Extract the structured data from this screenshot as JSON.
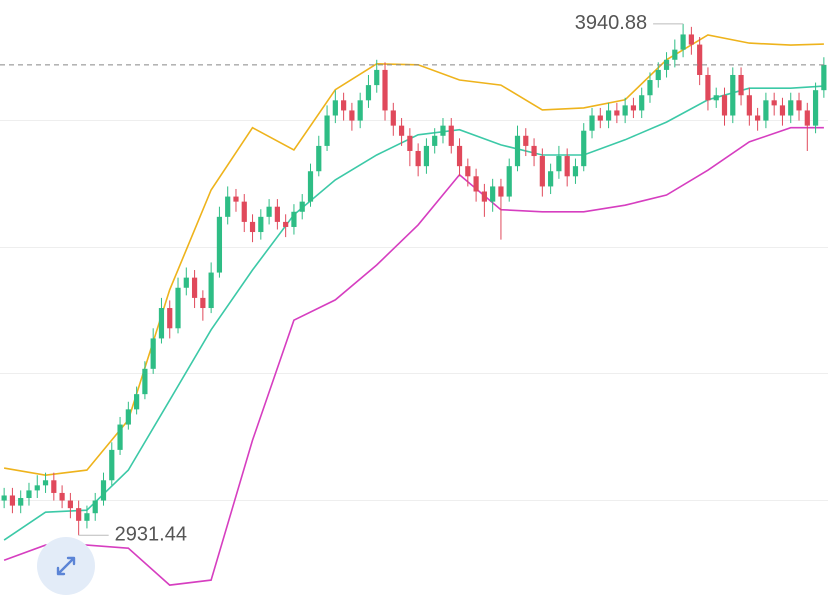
{
  "chart_data": {
    "type": "candlestick",
    "ylim": [
      2780,
      3988
    ],
    "up_color": "#2ebd85",
    "down_color": "#e0495b",
    "open": [
      3000,
      3010,
      2990,
      3005,
      3020,
      3030,
      3040,
      3015,
      3000,
      2985,
      2960,
      2975,
      3000,
      3040,
      3100,
      3150,
      3180,
      3210,
      3260,
      3320,
      3380,
      3340,
      3420,
      3440,
      3400,
      3380,
      3450,
      3560,
      3600,
      3590,
      3550,
      3530,
      3560,
      3580,
      3550,
      3540,
      3570,
      3590,
      3650,
      3700,
      3760,
      3790,
      3770,
      3750,
      3790,
      3820,
      3850,
      3770,
      3740,
      3720,
      3690,
      3660,
      3700,
      3720,
      3740,
      3700,
      3660,
      3640,
      3610,
      3590,
      3620,
      3600,
      3660,
      3720,
      3700,
      3680,
      3620,
      3650,
      3680,
      3640,
      3660,
      3730,
      3760,
      3750,
      3770,
      3760,
      3780,
      3770,
      3800,
      3830,
      3850,
      3870,
      3890,
      3920,
      3900,
      3840,
      3790,
      3800,
      3760,
      3840,
      3800,
      3760,
      3750,
      3790,
      3780,
      3760,
      3790,
      3770,
      3740,
      3810
    ],
    "high": [
      3025,
      3025,
      3020,
      3035,
      3050,
      3055,
      3055,
      3030,
      3015,
      3000,
      2990,
      3015,
      3055,
      3115,
      3165,
      3195,
      3225,
      3275,
      3340,
      3400,
      3395,
      3440,
      3460,
      3455,
      3415,
      3470,
      3580,
      3620,
      3615,
      3605,
      3565,
      3575,
      3595,
      3595,
      3565,
      3585,
      3605,
      3665,
      3720,
      3780,
      3810,
      3805,
      3785,
      3805,
      3840,
      3870,
      3865,
      3785,
      3755,
      3735,
      3705,
      3715,
      3735,
      3755,
      3755,
      3715,
      3675,
      3655,
      3625,
      3635,
      3635,
      3675,
      3740,
      3735,
      3715,
      3695,
      3665,
      3700,
      3695,
      3675,
      3745,
      3775,
      3775,
      3785,
      3785,
      3795,
      3795,
      3815,
      3845,
      3865,
      3885,
      3910,
      3940.88,
      3935,
      3915,
      3855,
      3815,
      3815,
      3855,
      3855,
      3815,
      3775,
      3805,
      3805,
      3795,
      3805,
      3805,
      3785,
      3825,
      3875
    ],
    "low": [
      2985,
      2975,
      2975,
      2990,
      3005,
      3015,
      3000,
      2985,
      2965,
      2931.44,
      2945,
      2960,
      2990,
      3030,
      3090,
      3140,
      3170,
      3200,
      3250,
      3310,
      3320,
      3330,
      3405,
      3380,
      3355,
      3370,
      3440,
      3545,
      3570,
      3530,
      3510,
      3515,
      3545,
      3535,
      3520,
      3525,
      3555,
      3580,
      3640,
      3690,
      3745,
      3750,
      3730,
      3735,
      3775,
      3805,
      3750,
      3720,
      3700,
      3660,
      3640,
      3645,
      3685,
      3705,
      3685,
      3640,
      3620,
      3590,
      3560,
      3570,
      3515,
      3590,
      3650,
      3680,
      3660,
      3600,
      3605,
      3635,
      3620,
      3625,
      3650,
      3715,
      3735,
      3735,
      3745,
      3745,
      3755,
      3755,
      3785,
      3815,
      3835,
      3855,
      3875,
      3880,
      3820,
      3770,
      3775,
      3740,
      3745,
      3780,
      3740,
      3730,
      3735,
      3760,
      3740,
      3745,
      3750,
      3690,
      3725,
      3795
    ],
    "close": [
      3010,
      2990,
      3005,
      3020,
      3030,
      3040,
      3015,
      3000,
      2985,
      2960,
      2975,
      3000,
      3040,
      3100,
      3150,
      3180,
      3210,
      3260,
      3320,
      3380,
      3340,
      3420,
      3440,
      3400,
      3380,
      3450,
      3560,
      3600,
      3590,
      3550,
      3530,
      3560,
      3580,
      3550,
      3540,
      3570,
      3590,
      3650,
      3700,
      3760,
      3790,
      3770,
      3750,
      3790,
      3820,
      3850,
      3770,
      3740,
      3720,
      3690,
      3660,
      3700,
      3720,
      3740,
      3700,
      3660,
      3640,
      3610,
      3590,
      3620,
      3600,
      3660,
      3720,
      3700,
      3680,
      3620,
      3650,
      3680,
      3640,
      3660,
      3730,
      3760,
      3750,
      3770,
      3760,
      3780,
      3770,
      3800,
      3830,
      3850,
      3870,
      3890,
      3920,
      3900,
      3840,
      3790,
      3800,
      3760,
      3840,
      3800,
      3760,
      3750,
      3790,
      3780,
      3760,
      3790,
      3770,
      3740,
      3810,
      3860
    ],
    "band_x": [
      0,
      5,
      10,
      15,
      20,
      25,
      30,
      35,
      40,
      45,
      50,
      55,
      60,
      65,
      70,
      75,
      80,
      85,
      90,
      95,
      99
    ],
    "bands": [
      {
        "color": "#eeb31c",
        "values": [
          3064,
          3050,
          3060,
          3159,
          3416,
          3613,
          3736,
          3692,
          3811,
          3862,
          3860,
          3830,
          3820,
          3771,
          3775,
          3791,
          3870,
          3919,
          3903,
          3899,
          3901
        ]
      },
      {
        "color": "#3cc9a7",
        "values": [
          2922,
          2977,
          2981,
          3060,
          3198,
          3337,
          3455,
          3564,
          3633,
          3682,
          3722,
          3732,
          3702,
          3682,
          3682,
          3712,
          3747,
          3791,
          3814,
          3814,
          3818
        ]
      },
      {
        "color": "#d63ec0",
        "values": [
          2882,
          2912,
          2912,
          2906,
          2833,
          2843,
          3119,
          3356,
          3396,
          3465,
          3544,
          3643,
          3574,
          3570,
          3570,
          3583,
          3603,
          3652,
          3708,
          3736,
          3736
        ]
      }
    ],
    "max_price": 3940.88,
    "min_price": 2931.44
  }
}
